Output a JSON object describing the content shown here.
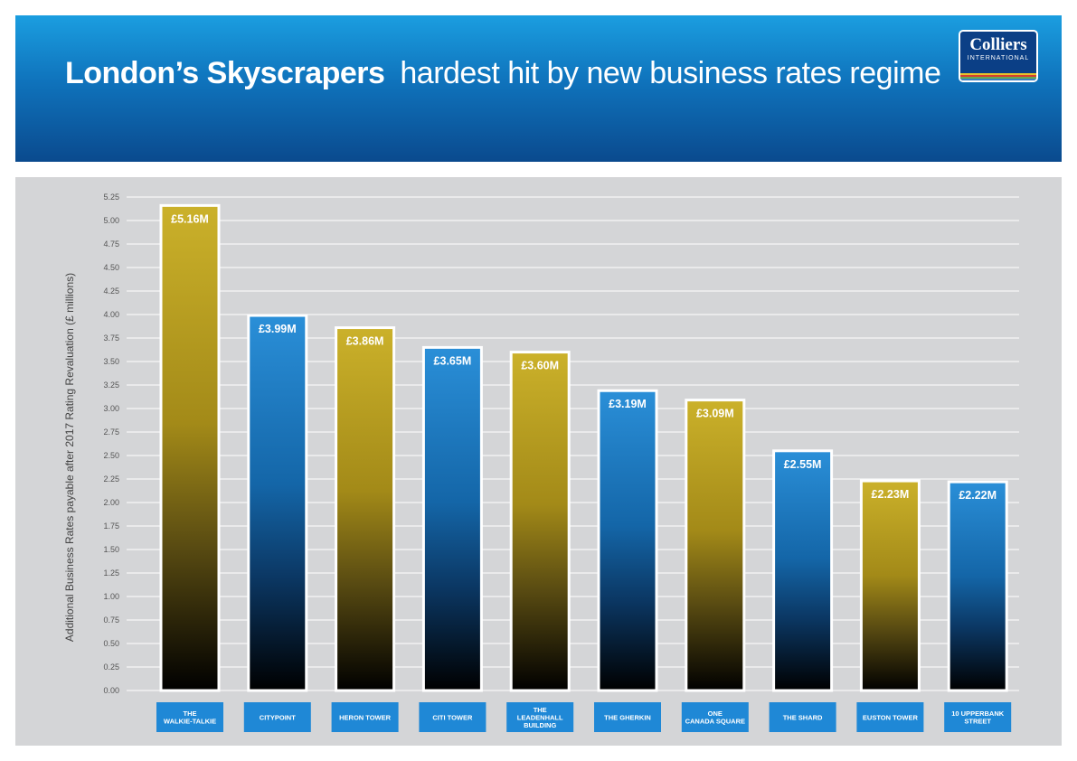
{
  "header": {
    "title_bold": "London’s Skyscrapers",
    "title_rest": "hardest hit by new business rates regime",
    "logo_name": "Colliers",
    "logo_sub": "INTERNATIONAL"
  },
  "colors": {
    "olive": "#b8a020",
    "blue": "#1a80c8",
    "logo_stripes": [
      "#e8c32a",
      "#d6402f",
      "#6aa84f",
      "#3a7fc4"
    ]
  },
  "chart_data": {
    "type": "bar",
    "title": "",
    "xlabel": "",
    "ylabel": "Additional Business Rates payable after 2017 Rating Revaluation (£ millions)",
    "ylim": [
      0,
      5.25
    ],
    "ytick_step": 0.25,
    "yticks": [
      "0.00",
      "0.25",
      "0.50",
      "0.75",
      "1.00",
      "1.25",
      "1.50",
      "1.75",
      "2.00",
      "2.25",
      "2.50",
      "2.75",
      "3.00",
      "3.25",
      "3.50",
      "3.75",
      "4.00",
      "4.25",
      "4.50",
      "4.75",
      "5.00",
      "5.25"
    ],
    "grid": true,
    "categories": [
      "THE WALKIE-TALKIE",
      "CITYPOINT",
      "HERON TOWER",
      "CITI TOWER",
      "THE LEADENHALL BUILDING",
      "THE GHERKIN",
      "ONE CANADA SQUARE",
      "THE SHARD",
      "EUSTON TOWER",
      "10 UPPERBANK STREET"
    ],
    "category_lines": [
      [
        "THE",
        "WALKIE-TALKIE"
      ],
      [
        "CITYPOINT"
      ],
      [
        "HERON TOWER"
      ],
      [
        "CITI TOWER"
      ],
      [
        "THE",
        "LEADENHALL",
        "BUILDING"
      ],
      [
        "THE GHERKIN"
      ],
      [
        "ONE",
        "CANADA SQUARE"
      ],
      [
        "THE SHARD"
      ],
      [
        "EUSTON TOWER"
      ],
      [
        "10 UPPERBANK",
        "STREET"
      ]
    ],
    "values": [
      5.16,
      3.99,
      3.86,
      3.65,
      3.6,
      3.19,
      3.09,
      2.55,
      2.23,
      2.22
    ],
    "labels": [
      "£5.16M",
      "£3.99M",
      "£3.86M",
      "£3.65M",
      "£3.60M",
      "£3.19M",
      "£3.09M",
      "£2.55M",
      "£2.23M",
      "£2.22M"
    ],
    "bar_colors": [
      "olive",
      "blue",
      "olive",
      "blue",
      "olive",
      "blue",
      "olive",
      "blue",
      "olive",
      "blue"
    ]
  }
}
